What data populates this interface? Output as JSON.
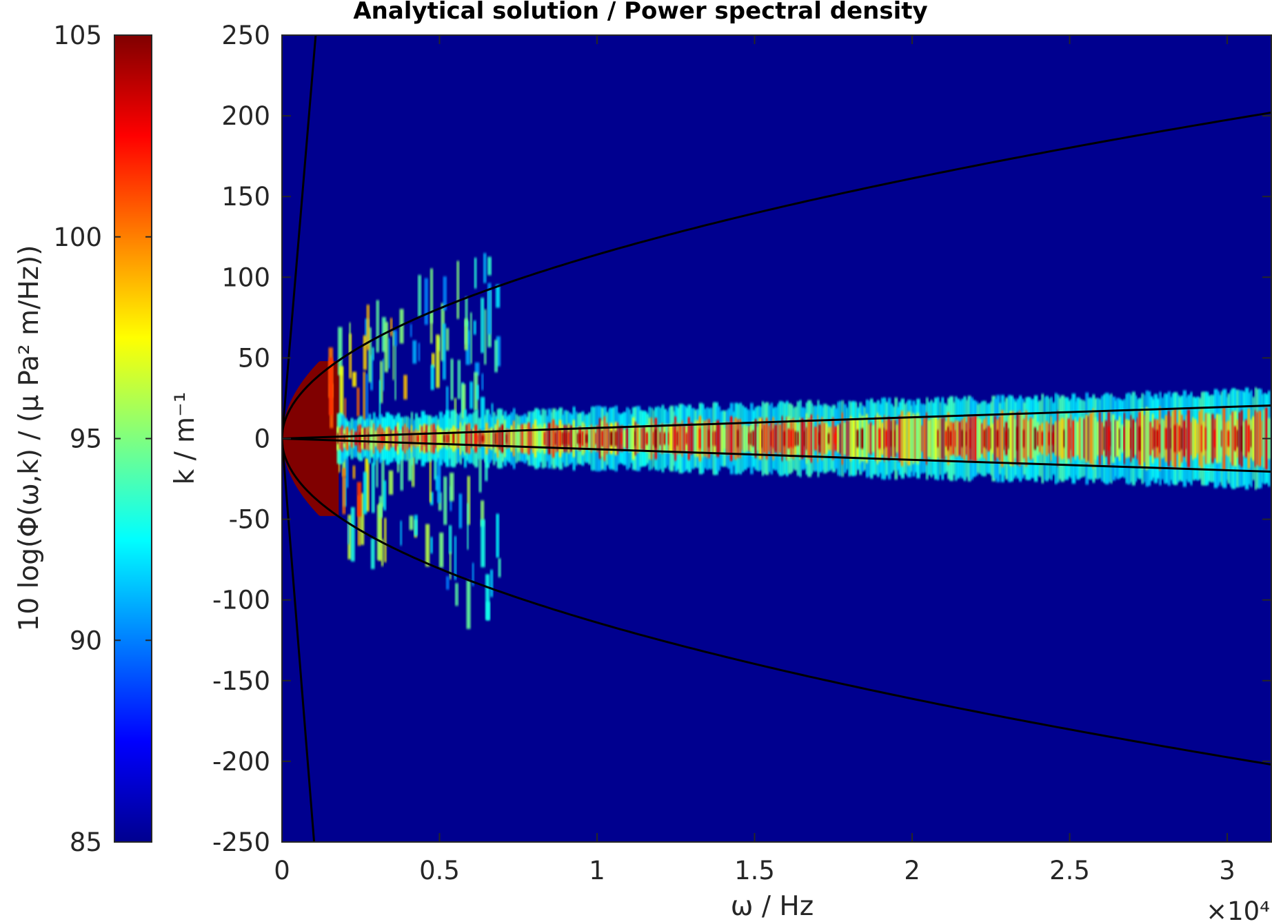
{
  "chart_data": {
    "type": "heatmap",
    "title": "Analytical solution / Power spectral density",
    "xlabel": "ω / Hz",
    "ylabel": "k / m⁻¹",
    "x_multiplier_label": "×10⁴",
    "xlim": [
      0,
      31400
    ],
    "ylim": [
      -250,
      250
    ],
    "x_ticks": [
      {
        "value": 0,
        "label": "0"
      },
      {
        "value": 5000,
        "label": "0.5"
      },
      {
        "value": 10000,
        "label": "1"
      },
      {
        "value": 15000,
        "label": "1.5"
      },
      {
        "value": 20000,
        "label": "2"
      },
      {
        "value": 25000,
        "label": "2.5"
      },
      {
        "value": 30000,
        "label": "3"
      }
    ],
    "y_ticks": [
      {
        "value": 250,
        "label": "250"
      },
      {
        "value": 200,
        "label": "200"
      },
      {
        "value": 150,
        "label": "150"
      },
      {
        "value": 100,
        "label": "100"
      },
      {
        "value": 50,
        "label": "50"
      },
      {
        "value": 0,
        "label": "0"
      },
      {
        "value": -50,
        "label": "-50"
      },
      {
        "value": -100,
        "label": "-100"
      },
      {
        "value": -150,
        "label": "-150"
      },
      {
        "value": -200,
        "label": "-200"
      },
      {
        "value": -250,
        "label": "-250"
      }
    ],
    "colorbar": {
      "label": "10 log(Φ(ω,k) / (μ Pa² m/Hz))",
      "range": [
        85,
        105
      ],
      "colormap": "jet",
      "ticks": [
        {
          "value": 105,
          "label": "105"
        },
        {
          "value": 100,
          "label": "100"
        },
        {
          "value": 95,
          "label": "95"
        },
        {
          "value": 90,
          "label": "90"
        },
        {
          "value": 85,
          "label": "85"
        }
      ]
    },
    "background_level": 85,
    "dispersion_curves": [
      {
        "points": [
          [
            0,
            0
          ],
          [
            1000,
            44
          ],
          [
            3000,
            77
          ],
          [
            6000,
            106
          ],
          [
            10000,
            137
          ],
          [
            15000,
            161
          ],
          [
            20000,
            178
          ],
          [
            25000,
            191
          ],
          [
            31400,
            202
          ]
        ]
      },
      {
        "points": [
          [
            0,
            0
          ],
          [
            1000,
            -44
          ],
          [
            3000,
            -77
          ],
          [
            6000,
            -106
          ],
          [
            10000,
            -137
          ],
          [
            15000,
            -161
          ],
          [
            20000,
            -178
          ],
          [
            25000,
            -191
          ],
          [
            31400,
            -202
          ]
        ]
      },
      {
        "points": [
          [
            0,
            0
          ],
          [
            1070,
            250
          ]
        ]
      },
      {
        "points": [
          [
            0,
            0
          ],
          [
            1020,
            -250
          ]
        ]
      },
      {
        "points": [
          [
            0,
            0
          ],
          [
            10000,
            6.6
          ],
          [
            20000,
            13.2
          ],
          [
            31400,
            20.5
          ]
        ]
      },
      {
        "points": [
          [
            0,
            0
          ],
          [
            10000,
            -6.6
          ],
          [
            20000,
            -13.2
          ],
          [
            31400,
            -20.5
          ]
        ]
      }
    ],
    "hot_region": {
      "x_max": 1800,
      "level": 105
    },
    "convective_ridge": {
      "k_center": 0,
      "half_width": 10,
      "level_range": [
        92,
        104
      ],
      "x_range": [
        1800,
        31400
      ]
    },
    "acoustic_lobes": {
      "x_range": [
        1500,
        7000
      ],
      "level_range": [
        92,
        103
      ]
    }
  },
  "colors": {
    "background_plot": "#00008f",
    "curves": "#000000",
    "frame": "#262626"
  }
}
